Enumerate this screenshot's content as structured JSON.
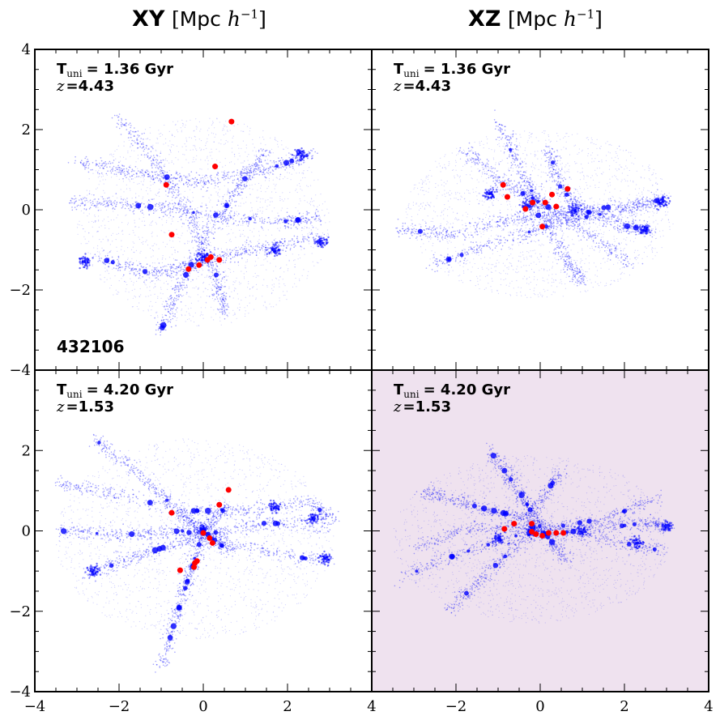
{
  "titles": {
    "left": {
      "bold": "XY",
      "unit": "Mpc",
      "math": "h",
      "sup": "−1"
    },
    "right": {
      "bold": "XZ",
      "unit": "Mpc",
      "math": "h",
      "sup": "−1"
    }
  },
  "colors": {
    "particles": "#0000ff",
    "highlight": "#ff0000",
    "highlight_panel_bg": "#efe2ef",
    "axes": "#000000"
  },
  "chart_data": {
    "type": "scatter",
    "layout": "2x2 grid",
    "xlim": [
      -4,
      4
    ],
    "ylim": [
      -4,
      4
    ],
    "xticks": [
      -4,
      -2,
      0,
      2,
      4
    ],
    "yticks": [
      -4,
      -2,
      0,
      2,
      4
    ],
    "grid": false,
    "panels": [
      {
        "id": "xy-early",
        "projection": "XY",
        "time_label": "T",
        "time_sub": "uni",
        "time_value": "= 1.36 Gyr",
        "z_label": "z",
        "z_value": "=4.43",
        "halo_id": "432106",
        "highlighted": false,
        "red_points": [
          {
            "x": 0.67,
            "y": 2.2
          },
          {
            "x": 0.28,
            "y": 1.08
          },
          {
            "x": -0.88,
            "y": 0.62
          },
          {
            "x": -0.75,
            "y": -0.62
          },
          {
            "x": -0.35,
            "y": -1.48
          },
          {
            "x": -0.1,
            "y": -1.38
          },
          {
            "x": 0.1,
            "y": -1.25
          },
          {
            "x": 0.18,
            "y": -1.18
          },
          {
            "x": 0.38,
            "y": -1.25
          }
        ]
      },
      {
        "id": "xz-early",
        "projection": "XZ",
        "time_label": "T",
        "time_sub": "uni",
        "time_value": "= 1.36 Gyr",
        "z_label": "z",
        "z_value": "=4.43",
        "halo_id": "",
        "highlighted": false,
        "red_points": [
          {
            "x": -0.88,
            "y": 0.62
          },
          {
            "x": -0.78,
            "y": 0.32
          },
          {
            "x": -0.35,
            "y": 0.02
          },
          {
            "x": -0.18,
            "y": 0.18
          },
          {
            "x": 0.12,
            "y": 0.18
          },
          {
            "x": 0.28,
            "y": 0.38
          },
          {
            "x": 0.38,
            "y": 0.08
          },
          {
            "x": 0.65,
            "y": 0.52
          },
          {
            "x": 0.05,
            "y": -0.42
          }
        ]
      },
      {
        "id": "xy-late",
        "projection": "XY",
        "time_label": "T",
        "time_sub": "uni",
        "time_value": "= 4.20 Gyr",
        "z_label": "z",
        "z_value": "=1.53",
        "halo_id": "",
        "highlighted": false,
        "red_points": [
          {
            "x": 0.6,
            "y": 1.02
          },
          {
            "x": 0.38,
            "y": 0.65
          },
          {
            "x": -0.75,
            "y": 0.45
          },
          {
            "x": 0.0,
            "y": -0.05
          },
          {
            "x": 0.15,
            "y": -0.18
          },
          {
            "x": 0.22,
            "y": -0.3
          },
          {
            "x": -0.15,
            "y": -0.75
          },
          {
            "x": -0.2,
            "y": -0.8
          },
          {
            "x": -0.22,
            "y": -0.9
          },
          {
            "x": -0.55,
            "y": -0.98
          }
        ]
      },
      {
        "id": "xz-late",
        "projection": "XZ",
        "time_label": "T",
        "time_sub": "uni",
        "time_value": "= 4.20 Gyr",
        "z_label": "z",
        "z_value": "=1.53",
        "halo_id": "",
        "highlighted": true,
        "red_points": [
          {
            "x": -0.62,
            "y": 0.18
          },
          {
            "x": -0.85,
            "y": 0.05
          },
          {
            "x": -0.2,
            "y": 0.18
          },
          {
            "x": -0.2,
            "y": -0.02
          },
          {
            "x": -0.1,
            "y": -0.08
          },
          {
            "x": 0.05,
            "y": -0.12
          },
          {
            "x": 0.2,
            "y": -0.05
          },
          {
            "x": 0.38,
            "y": -0.05
          },
          {
            "x": 0.55,
            "y": -0.05
          }
        ]
      }
    ]
  }
}
